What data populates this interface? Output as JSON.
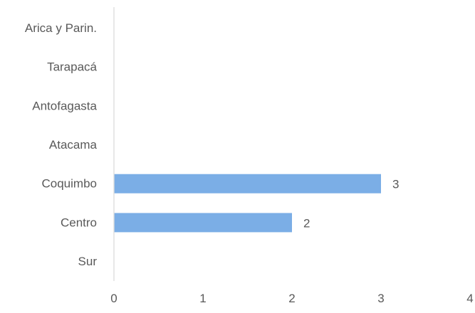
{
  "chart_data": {
    "type": "bar",
    "orientation": "horizontal",
    "title": "",
    "xlabel": "",
    "ylabel": "",
    "categories": [
      "Arica y Parin.",
      "Tarapacá",
      "Antofagasta",
      "Atacama",
      "Coquimbo",
      "Centro",
      "Sur"
    ],
    "values": [
      0,
      0,
      0,
      0,
      3,
      2,
      0
    ],
    "data_labels": [
      "",
      "",
      "",
      "",
      "3",
      "2",
      ""
    ],
    "xlim": [
      0,
      4
    ],
    "xticks": [
      0,
      1,
      2,
      3,
      4
    ],
    "xtick_labels": [
      "0",
      "1",
      "2",
      "3",
      "4"
    ],
    "grid": false,
    "legend": "none",
    "bar_color": "#7BAEE6",
    "axis_color": "#D9D9D9",
    "text_color": "#595959"
  }
}
